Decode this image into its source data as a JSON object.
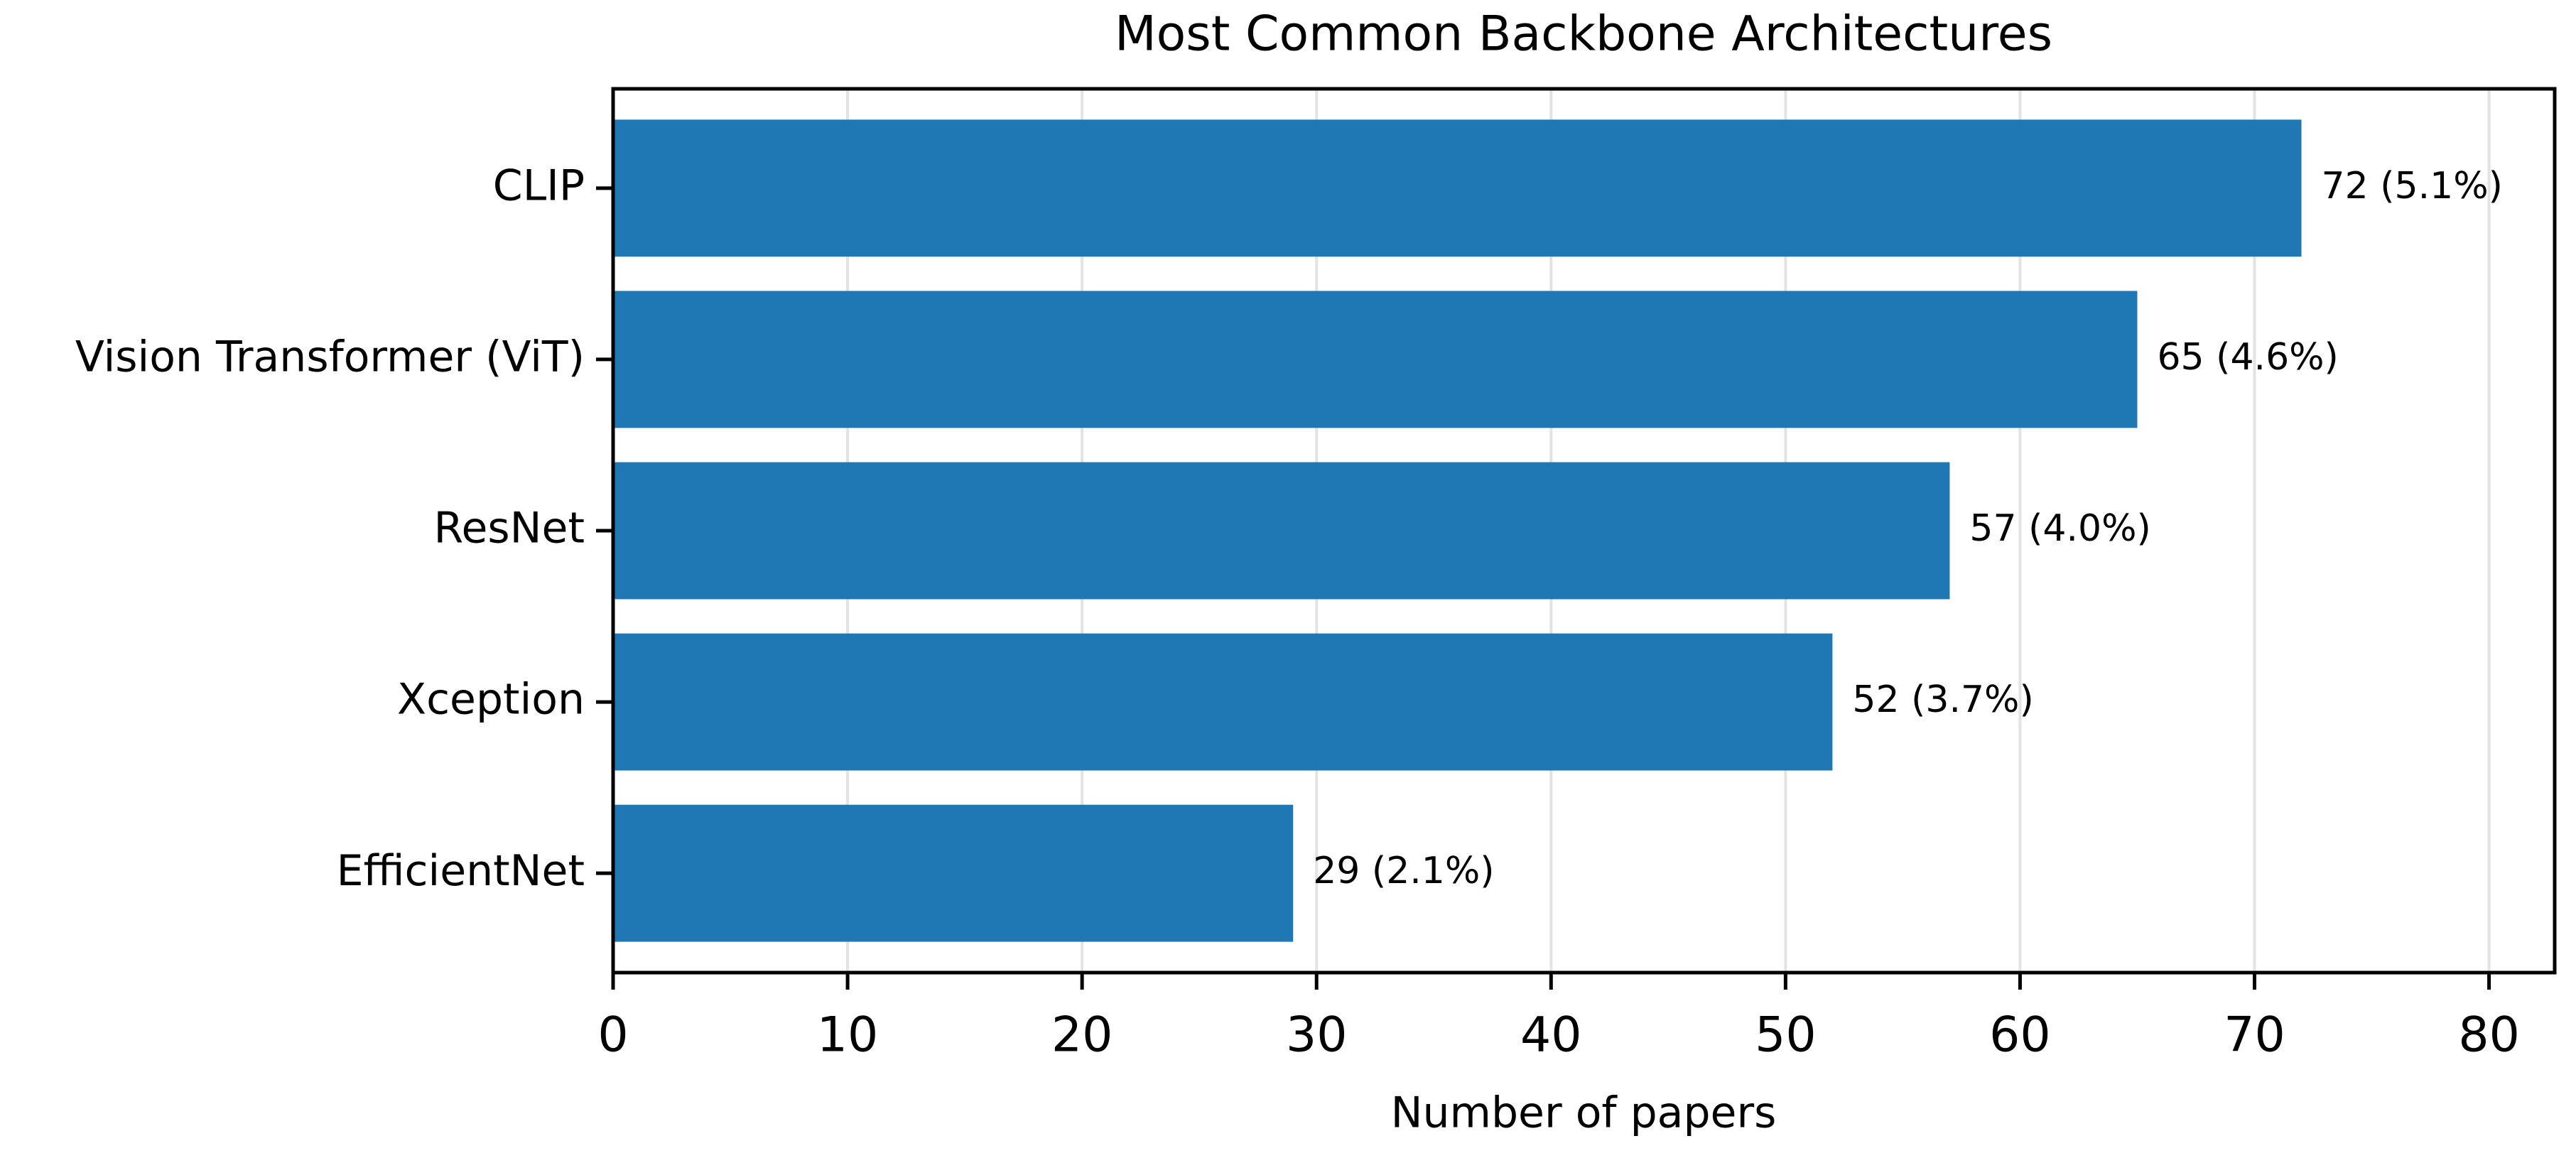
{
  "chart_data": {
    "type": "barh",
    "title": "Most Common Backbone Architectures",
    "xlabel": "Number of papers",
    "categories": [
      "CLIP",
      "Vision Transformer (ViT)",
      "ResNet",
      "Xception",
      "EfficientNet"
    ],
    "values": [
      72,
      65,
      57,
      52,
      29
    ],
    "value_labels": [
      "72 (5.1%)",
      "65 (4.6%)",
      "57 (4.0%)",
      "52 (3.7%)",
      "29 (2.1%)"
    ],
    "color": "#1f77b4",
    "xlim": [
      0,
      82.8
    ],
    "xticks": [
      0,
      10,
      20,
      30,
      40,
      50,
      60,
      70,
      80
    ],
    "grid": true
  }
}
